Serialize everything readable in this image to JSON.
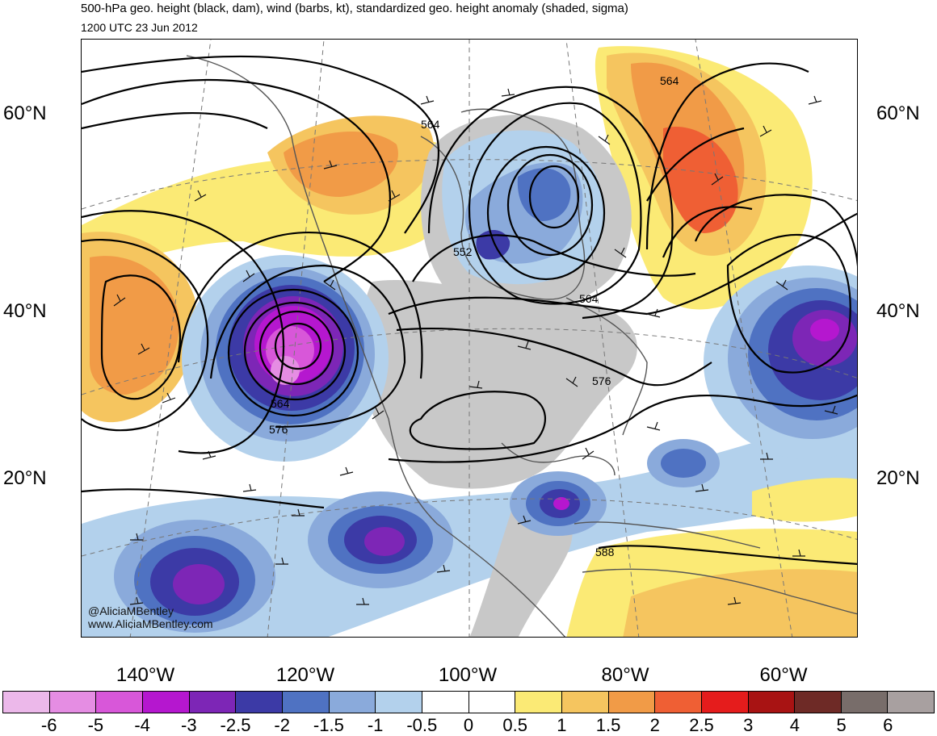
{
  "header": {
    "title": "500-hPa geo. height (black, dam), wind (barbs, kt), standardized geo. height anomaly (shaded, sigma)",
    "datetime": "1200 UTC 23 Jun 2012"
  },
  "axes": {
    "lat_left": [
      "60°N",
      "40°N",
      "20°N"
    ],
    "lat_right": [
      "60°N",
      "40°N",
      "20°N"
    ],
    "lon": [
      "140°W",
      "120°W",
      "100°W",
      "80°W",
      "60°W"
    ]
  },
  "contour_labels": [
    "564",
    "564",
    "552",
    "564",
    "576",
    "564",
    "576",
    "588"
  ],
  "credits": [
    "@AliciaMBentley",
    "www.AliciaMBentley.com"
  ],
  "colorbar": {
    "colors": [
      "#ecb8ea",
      "#e58de3",
      "#d857d9",
      "#b517cf",
      "#7d26b6",
      "#3c3aa6",
      "#4f72c2",
      "#8aaadb",
      "#b3d1ec",
      "#ffffff",
      "#ffffff",
      "#fbea75",
      "#f5c55f",
      "#f19b47",
      "#ef5f34",
      "#e51c1c",
      "#a81313",
      "#6e2a26",
      "#786d6a",
      "#a8a0a0"
    ],
    "ticks": [
      "-6",
      "-5",
      "-4",
      "-3",
      "-2.5",
      "-2",
      "-1.5",
      "-1",
      "-0.5",
      "0",
      "0.5",
      "1",
      "1.5",
      "2",
      "2.5",
      "3",
      "4",
      "5",
      "6"
    ]
  }
}
